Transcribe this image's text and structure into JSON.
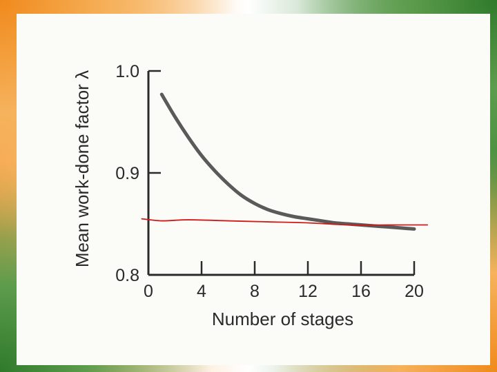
{
  "chart_data": {
    "type": "line",
    "xlabel": "Number of stages",
    "ylabel": "Mean work-done factor λ",
    "xlim": [
      0,
      20
    ],
    "ylim": [
      0.8,
      1.0
    ],
    "x_ticks": [
      "0",
      "4",
      "8",
      "12",
      "16",
      "20"
    ],
    "y_ticks": [
      "1.0",
      "0.9",
      "0.8"
    ],
    "grid": false,
    "series": [
      {
        "color": "#5a5a5a",
        "x": [
          1,
          2,
          3,
          4,
          5,
          6,
          7,
          8,
          9,
          10,
          11,
          12,
          13,
          14,
          15,
          16,
          17,
          18,
          19,
          20
        ],
        "y": [
          0.977,
          0.955,
          0.935,
          0.917,
          0.902,
          0.889,
          0.878,
          0.87,
          0.864,
          0.86,
          0.857,
          0.855,
          0.853,
          0.851,
          0.85,
          0.849,
          0.848,
          0.847,
          0.846,
          0.845
        ]
      },
      {
        "color": "#d01818",
        "x": [
          -0.5,
          1,
          3,
          6,
          9,
          12,
          15,
          18,
          21
        ],
        "y": [
          0.855,
          0.853,
          0.854,
          0.853,
          0.852,
          0.851,
          0.849,
          0.849,
          0.849
        ]
      }
    ]
  }
}
